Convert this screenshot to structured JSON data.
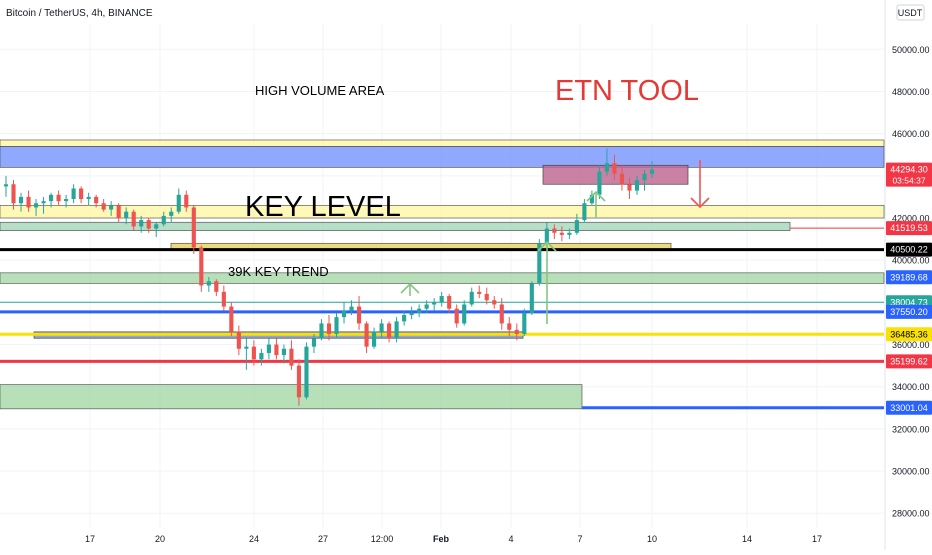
{
  "header": {
    "title": "Bitcoin / TetherUS, 4h, BINANCE",
    "currency": "USDT"
  },
  "colors": {
    "up": "#26a69a",
    "down": "#ef5350",
    "grid": "#f0f3fa",
    "red": "#f23645",
    "blue": "#2962ff",
    "yellow": "#f9e106",
    "green": "#4caf50",
    "black": "#000000"
  },
  "annotations": {
    "high_volume": "HIGH VOLUME AREA",
    "etn_tool": "ETN TOOL",
    "key_level": "KEY LEVEL",
    "key_trend": "39K KEY TREND"
  },
  "chart_data": {
    "type": "candlestick",
    "title": "Bitcoin / TetherUS, 4h, BINANCE",
    "ylabel": "USDT",
    "ylim": [
      27300,
      51200
    ],
    "y_ticks": [
      28000,
      30000,
      32000,
      34000,
      36000,
      38000,
      40000,
      42000,
      44000,
      46000,
      48000,
      50000
    ],
    "x_ticks": [
      "17",
      "20",
      "24",
      "27",
      "12:00",
      "Feb",
      "4",
      "7",
      "10",
      "14",
      "17"
    ],
    "price_labels": [
      {
        "value": "44294.30",
        "sub": "03:54:37",
        "color": "#f23645"
      },
      {
        "value": "41519.53",
        "color": "#f23645"
      },
      {
        "value": "40500.22",
        "color": "#000000"
      },
      {
        "value": "39189.68",
        "color": "#2962ff"
      },
      {
        "value": "38004.73",
        "color": "#26a69a"
      },
      {
        "value": "37550.20",
        "color": "#2962ff"
      },
      {
        "value": "36485.36",
        "color": "#f9e106"
      },
      {
        "value": "35199.62",
        "color": "#f23645"
      },
      {
        "value": "33001.04",
        "color": "#2962ff"
      }
    ],
    "horizontal_levels": [
      {
        "price": 41519.53,
        "color": "#f23645"
      },
      {
        "price": 40500.22,
        "color": "#000000"
      },
      {
        "price": 38004.73,
        "color": "#26a69a"
      },
      {
        "price": 37550.2,
        "color": "#2962ff"
      },
      {
        "price": 36485.36,
        "color": "#f9e106"
      },
      {
        "price": 35199.62,
        "color": "#f23645"
      },
      {
        "price": 33001.04,
        "color": "#2962ff"
      }
    ],
    "zones": [
      {
        "name": "high-volume-zone",
        "from": 44400,
        "to": 45400,
        "color": "#6b8cff"
      },
      {
        "name": "top-yellow-zone",
        "from": 45400,
        "to": 45700,
        "color": "#fff59d"
      },
      {
        "name": "key-level-zone",
        "from": 42000,
        "to": 42600,
        "color": "#fff59d"
      },
      {
        "name": "key-level-green-zone",
        "from": 41400,
        "to": 41800,
        "color": "#9fd4b5"
      },
      {
        "name": "key-trend-zone",
        "from": 38900,
        "to": 39400,
        "color": "#9fd4a0"
      },
      {
        "name": "lower-green-zone",
        "from": 32950,
        "to": 34100,
        "color": "#9fd4a0"
      }
    ],
    "candles": [
      [
        43500,
        44000,
        43000,
        43600
      ],
      [
        43600,
        43800,
        42400,
        42700
      ],
      [
        42700,
        43200,
        42300,
        43000
      ],
      [
        43000,
        43300,
        42300,
        42500
      ],
      [
        42500,
        42900,
        42100,
        42700
      ],
      [
        42700,
        43000,
        42200,
        42800
      ],
      [
        42800,
        43200,
        42500,
        43100
      ],
      [
        43100,
        43300,
        42600,
        42800
      ],
      [
        42800,
        43100,
        42500,
        42900
      ],
      [
        42900,
        43600,
        42700,
        43400
      ],
      [
        43400,
        43500,
        42700,
        42900
      ],
      [
        42900,
        43200,
        42600,
        43000
      ],
      [
        43000,
        43100,
        42500,
        42700
      ],
      [
        42700,
        42900,
        42300,
        42400
      ],
      [
        42400,
        42800,
        42100,
        42600
      ],
      [
        42600,
        42700,
        41800,
        42000
      ],
      [
        42000,
        42500,
        41700,
        42300
      ],
      [
        42300,
        42400,
        41400,
        41600
      ],
      [
        41600,
        42100,
        41300,
        41900
      ],
      [
        41900,
        42000,
        41300,
        41500
      ],
      [
        41500,
        41800,
        41100,
        41700
      ],
      [
        41700,
        42300,
        41600,
        42100
      ],
      [
        42100,
        42500,
        41800,
        42300
      ],
      [
        42300,
        43400,
        42200,
        43100
      ],
      [
        43100,
        43300,
        42300,
        42500
      ],
      [
        42500,
        42600,
        40300,
        40600
      ],
      [
        40600,
        40700,
        38500,
        38800
      ],
      [
        38800,
        39200,
        38500,
        39000
      ],
      [
        39000,
        39100,
        38300,
        38500
      ],
      [
        38500,
        38800,
        37600,
        37800
      ],
      [
        37800,
        38000,
        36400,
        36600
      ],
      [
        36600,
        36900,
        35500,
        35800
      ],
      [
        35800,
        36300,
        34800,
        35900
      ],
      [
        35900,
        36200,
        35000,
        35300
      ],
      [
        35300,
        35800,
        35000,
        35600
      ],
      [
        35600,
        36300,
        35300,
        36000
      ],
      [
        36000,
        36300,
        35300,
        35500
      ],
      [
        35500,
        36000,
        35100,
        35800
      ],
      [
        35800,
        36200,
        34800,
        35000
      ],
      [
        35000,
        35300,
        33100,
        33500
      ],
      [
        33500,
        36100,
        33400,
        35900
      ],
      [
        35900,
        36500,
        35600,
        36300
      ],
      [
        36300,
        37200,
        36200,
        37000
      ],
      [
        37000,
        37400,
        36200,
        36500
      ],
      [
        36500,
        37500,
        36300,
        37300
      ],
      [
        37300,
        38000,
        37000,
        37600
      ],
      [
        37600,
        38100,
        37400,
        37800
      ],
      [
        37800,
        38300,
        36700,
        37000
      ],
      [
        37000,
        37100,
        35600,
        35900
      ],
      [
        35900,
        36800,
        35800,
        36600
      ],
      [
        36600,
        37200,
        36300,
        37000
      ],
      [
        37000,
        37100,
        36100,
        36300
      ],
      [
        36300,
        37300,
        36100,
        37100
      ],
      [
        37100,
        37600,
        36900,
        37400
      ],
      [
        37400,
        37800,
        37200,
        37500
      ],
      [
        37500,
        37900,
        37300,
        37700
      ],
      [
        37700,
        38100,
        37500,
        37900
      ],
      [
        37900,
        38200,
        37600,
        38000
      ],
      [
        38000,
        38500,
        37800,
        38300
      ],
      [
        38300,
        38400,
        37500,
        37700
      ],
      [
        37700,
        37900,
        36800,
        37000
      ],
      [
        37000,
        38100,
        36900,
        37900
      ],
      [
        37900,
        38700,
        37800,
        38500
      ],
      [
        38500,
        38800,
        38200,
        38400
      ],
      [
        38400,
        38700,
        37900,
        38100
      ],
      [
        38100,
        38300,
        37700,
        37900
      ],
      [
        37900,
        38200,
        36700,
        37000
      ],
      [
        37000,
        37300,
        36400,
        36700
      ],
      [
        36700,
        37000,
        36200,
        36500
      ],
      [
        36500,
        37700,
        36400,
        37500
      ],
      [
        37500,
        39000,
        37400,
        38900
      ],
      [
        38900,
        41000,
        38800,
        40800
      ],
      [
        40800,
        41800,
        40700,
        41500
      ],
      [
        41500,
        41700,
        41000,
        41300
      ],
      [
        41300,
        41600,
        40900,
        41200
      ],
      [
        41200,
        41500,
        41000,
        41300
      ],
      [
        41300,
        42200,
        41200,
        41900
      ],
      [
        41900,
        42900,
        41800,
        42700
      ],
      [
        42700,
        43300,
        42600,
        43100
      ],
      [
        43100,
        44500,
        42900,
        44200
      ],
      [
        44200,
        45300,
        44000,
        44600
      ],
      [
        44600,
        45000,
        43800,
        44100
      ],
      [
        44100,
        44500,
        43300,
        43600
      ],
      [
        43600,
        43900,
        42900,
        43300
      ],
      [
        43300,
        44000,
        43100,
        43800
      ],
      [
        43800,
        44300,
        43300,
        44100
      ],
      [
        44100,
        44700,
        43900,
        44300
      ]
    ]
  }
}
